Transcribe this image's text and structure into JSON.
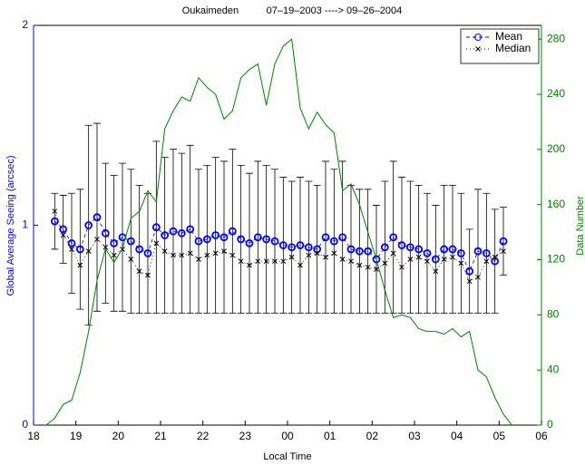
{
  "chart_data": {
    "type": "errorbar",
    "title": "Oukaimeden          07–19–2003 ----> 09–26–2004",
    "x_label": "Local Time",
    "y_label": "Global Average Seeing (arcsec)",
    "y2_label": "Data Number",
    "xlim": [
      18,
      30
    ],
    "xticks": [
      18,
      19,
      20,
      21,
      22,
      23,
      {
        "value": 24,
        "label": "00"
      },
      {
        "value": 25,
        "label": "01"
      },
      {
        "value": 26,
        "label": "02"
      },
      {
        "value": 27,
        "label": "03"
      },
      {
        "value": 28,
        "label": "04"
      },
      {
        "value": 29,
        "label": "05"
      },
      {
        "value": 30,
        "label": "06"
      }
    ],
    "ylim": [
      0,
      2
    ],
    "yticks": [
      0,
      1,
      2
    ],
    "y2lim": [
      0,
      290
    ],
    "y2ticks": [
      0,
      40,
      80,
      120,
      160,
      200,
      240,
      280
    ],
    "y_color": "#0000ff",
    "y2_color": "#008000",
    "legend": "top-right",
    "x": [
      18.5,
      18.7,
      18.9,
      19.1,
      19.3,
      19.5,
      19.7,
      19.9,
      20.1,
      20.3,
      20.5,
      20.7,
      20.9,
      21.1,
      21.3,
      21.5,
      21.7,
      21.9,
      22.1,
      22.3,
      22.5,
      22.7,
      22.9,
      23.1,
      23.3,
      23.5,
      23.7,
      23.9,
      24.1,
      24.3,
      24.5,
      24.7,
      24.9,
      25.1,
      25.3,
      25.5,
      25.7,
      25.9,
      26.1,
      26.3,
      26.5,
      26.7,
      26.9,
      27.1,
      27.3,
      27.5,
      27.7,
      27.9,
      28.1,
      28.3,
      28.5,
      28.7,
      28.9,
      29.1
    ],
    "series": [
      {
        "name": "Mean",
        "color": "#0000ff",
        "marker": "circle",
        "values": [
          1.02,
          0.98,
          0.91,
          0.88,
          1.0,
          1.04,
          0.96,
          0.91,
          0.94,
          0.92,
          0.88,
          0.86,
          0.99,
          0.95,
          0.97,
          0.96,
          0.98,
          0.92,
          0.93,
          0.95,
          0.94,
          0.97,
          0.93,
          0.91,
          0.94,
          0.93,
          0.92,
          0.9,
          0.89,
          0.9,
          0.89,
          0.88,
          0.94,
          0.92,
          0.94,
          0.88,
          0.87,
          0.87,
          0.83,
          0.89,
          0.94,
          0.9,
          0.89,
          0.88,
          0.86,
          0.83,
          0.88,
          0.88,
          0.86,
          0.77,
          0.87,
          0.86,
          0.82,
          0.92
        ],
        "errors": [
          0.14,
          0.17,
          0.25,
          0.3,
          0.5,
          0.47,
          0.35,
          0.34,
          0.37,
          0.36,
          0.32,
          0.3,
          0.43,
          0.39,
          0.41,
          0.4,
          0.42,
          0.36,
          0.37,
          0.39,
          0.38,
          0.41,
          0.37,
          0.35,
          0.38,
          0.37,
          0.36,
          0.34,
          0.33,
          0.34,
          0.33,
          0.32,
          0.38,
          0.36,
          0.38,
          0.32,
          0.31,
          0.31,
          0.27,
          0.33,
          0.38,
          0.34,
          0.33,
          0.32,
          0.3,
          0.27,
          0.32,
          0.32,
          0.3,
          0.21,
          0.31,
          0.3,
          0.26,
          0.17
        ]
      },
      {
        "name": "Median",
        "color": "#000000",
        "marker": "x",
        "values": [
          1.07,
          0.95,
          0.88,
          0.8,
          0.87,
          0.93,
          0.89,
          0.85,
          0.88,
          0.83,
          0.77,
          0.75,
          0.91,
          0.87,
          0.85,
          0.85,
          0.86,
          0.83,
          0.85,
          0.86,
          0.87,
          0.85,
          0.82,
          0.8,
          0.82,
          0.82,
          0.82,
          0.82,
          0.84,
          0.8,
          0.85,
          0.86,
          0.84,
          0.86,
          0.83,
          0.82,
          0.8,
          0.79,
          0.78,
          0.81,
          0.86,
          0.79,
          0.83,
          0.84,
          0.82,
          0.77,
          0.83,
          0.84,
          0.81,
          0.72,
          0.74,
          0.82,
          0.84,
          0.87
        ]
      },
      {
        "color": "#008000",
        "axis": "y2",
        "x": [
          18.3,
          18.5,
          18.7,
          18.9,
          19.1,
          19.3,
          19.5,
          19.7,
          19.9,
          20.1,
          20.3,
          20.5,
          20.7,
          20.9,
          21.1,
          21.3,
          21.5,
          21.7,
          21.9,
          22.1,
          22.3,
          22.5,
          22.7,
          22.9,
          23.1,
          23.3,
          23.5,
          23.7,
          23.9,
          24.1,
          24.3,
          24.5,
          24.7,
          24.9,
          25.1,
          25.3,
          25.5,
          25.7,
          25.9,
          26.1,
          26.3,
          26.5,
          26.7,
          26.9,
          27.1,
          27.3,
          27.5,
          27.7,
          27.9,
          28.1,
          28.3,
          28.5,
          28.7,
          28.9,
          29.1,
          29.3
        ],
        "values": [
          0,
          5,
          15,
          18,
          38,
          68,
          105,
          128,
          118,
          128,
          150,
          155,
          170,
          162,
          215,
          228,
          238,
          235,
          252,
          245,
          240,
          222,
          228,
          252,
          258,
          262,
          232,
          262,
          275,
          280,
          230,
          215,
          227,
          218,
          212,
          170,
          175,
          160,
          140,
          120,
          98,
          78,
          80,
          78,
          70,
          68,
          68,
          66,
          70,
          64,
          68,
          40,
          35,
          20,
          8,
          0
        ]
      }
    ]
  }
}
